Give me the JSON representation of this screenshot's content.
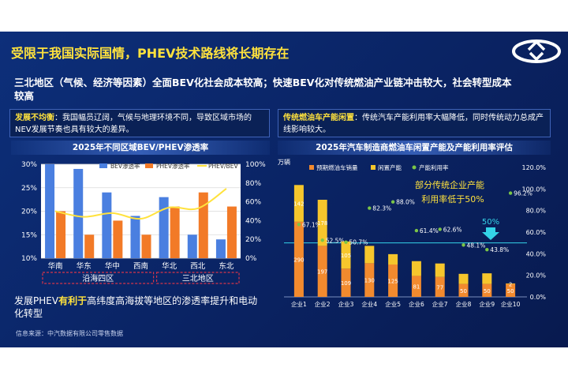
{
  "slide": {
    "title": "受限于我国实际国情，PHEV技术路线将长期存在",
    "subtitle": "三北地区（气候、经济等因素）全面BEV化社会成本较高；快速BEV化对传统燃油产业链冲击较大，社会转型成本较高",
    "callout_left": {
      "lead": "发展不均衡",
      "text": "：我国幅员辽阔，气候与地理环境不同，导致区域市场的NEV发展节奏也具有较大的差异。"
    },
    "callout_right": {
      "lead": "传统燃油车产能闲置",
      "text": "：传统汽车产能利用率大幅降低，同时传统动力总成产线影响较大。"
    },
    "note_left": {
      "prefix": "发展PHEV",
      "strong": "有利于",
      "suffix": "高纬度高海拔等地区的渗透率提升和电动化转型"
    },
    "source": "信息来源：中汽数据有限公司零售数据",
    "colors": {
      "accent_yellow": "#ffe23d",
      "bev_blue": "#4a7fe0",
      "phev_orange": "#f27a27",
      "pred_orange": "#f28a2e",
      "idle_yellow": "#f6c62c",
      "util_green": "#7bc547"
    }
  },
  "chart_data": [
    {
      "type": "bar",
      "title": "2025年不同区域BEV/PHEV渗透率",
      "categories": [
        "华南",
        "华东",
        "华中",
        "西南",
        "华北",
        "西北",
        "东北"
      ],
      "series": [
        {
          "name": "BEV渗透率",
          "values": [
            30,
            29,
            24,
            19,
            23,
            15,
            14
          ],
          "axis": "left"
        },
        {
          "name": "PHEV渗透率",
          "values": [
            20,
            15,
            18,
            15,
            21,
            24,
            21
          ],
          "axis": "left"
        },
        {
          "name": "PHEV/BEV",
          "values": [
            50,
            44,
            48,
            42,
            54,
            53,
            74
          ],
          "axis": "right",
          "type": "line"
        }
      ],
      "yleft": {
        "ticks": [
          "10%",
          "15%",
          "20%",
          "25%",
          "30%"
        ],
        "range": [
          10,
          30
        ]
      },
      "yright": {
        "ticks": [
          "0%",
          "20%",
          "40%",
          "60%",
          "80%",
          "100%"
        ],
        "range": [
          0,
          100
        ]
      },
      "region_groups": [
        {
          "label": "沿海四区",
          "from": 0,
          "to": 3
        },
        {
          "label": "三北地区",
          "from": 4,
          "to": 6
        }
      ]
    },
    {
      "type": "bar",
      "title": "2025年汽车制造商燃油车闲置产能及产能利用率评估",
      "unit": "万辆",
      "categories": [
        "企业1",
        "企业2",
        "企业3",
        "企业4",
        "企业5",
        "企业6",
        "企业7",
        "企业8",
        "企业9",
        "企业10"
      ],
      "series": [
        {
          "name": "预期燃油车销量",
          "values": [
            290,
            197,
            109,
            130,
            125,
            81,
            77,
            50,
            50,
            50
          ],
          "labels": [
            "290",
            "197",
            "109",
            "130",
            "125",
            "81",
            "77",
            "50",
            "50",
            "50"
          ],
          "axis": "left"
        },
        {
          "name": "闲置产能",
          "values": [
            142,
            178,
            105,
            67,
            40,
            57,
            52,
            39,
            41,
            2
          ],
          "labels": [
            "142",
            "178",
            "105",
            "",
            "",
            "",
            "",
            "",
            "",
            "2"
          ],
          "axis": "left"
        },
        {
          "name": "产能利用率",
          "values": [
            67.1,
            52.5,
            50.7,
            82.3,
            88.0,
            61.4,
            62.6,
            48.1,
            43.8,
            96.2
          ],
          "labels": [
            "67.1%",
            "52.5%",
            "50.7%",
            "82.3%",
            "88.0%",
            "61.4%",
            "62.6%",
            "48.1%",
            "43.8%",
            "96.2%"
          ],
          "axis": "right",
          "type": "scatter"
        }
      ],
      "yleft": {
        "range": [
          0,
          500
        ]
      },
      "yright": {
        "ticks": [
          "0.0%",
          "20.0%",
          "40.0%",
          "60.0%",
          "80.0%",
          "100.0%",
          "120.0%"
        ],
        "range": [
          0,
          120
        ]
      },
      "reference_line": {
        "value": 50,
        "label": "50%"
      },
      "annotation": "部分传统企业产能利用率低于50%"
    }
  ]
}
